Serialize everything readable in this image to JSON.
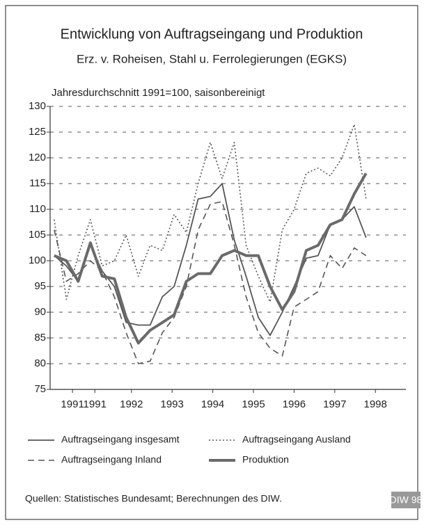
{
  "chart_data": {
    "type": "line",
    "title": "Entwicklung von Auftragseingang und Produktion",
    "subtitle": "Erz. v. Roheisen, Stahl u. Ferrolegierungen (EGKS)",
    "y_label": "Jahresdurchschnitt 1991=100, saisonbereinigt",
    "source": "Quellen: Statistisches Bundesamt; Berechnungen des DIW.",
    "badge": "DIW 98",
    "xlim": [
      1990.5,
      1999.25
    ],
    "xticks": [
      {
        "value": 1991.05,
        "label": "1991"
      },
      {
        "value": 1991.6,
        "label": "1991"
      },
      {
        "value": 1992.5,
        "label": "1992"
      },
      {
        "value": 1993.5,
        "label": "1993"
      },
      {
        "value": 1994.5,
        "label": "1994"
      },
      {
        "value": 1995.5,
        "label": "1995"
      },
      {
        "value": 1996.5,
        "label": "1996"
      },
      {
        "value": 1997.5,
        "label": "1997"
      },
      {
        "value": 1998.5,
        "label": "1998"
      }
    ],
    "ylim": [
      75,
      130
    ],
    "yticks": [
      75,
      80,
      85,
      90,
      95,
      100,
      105,
      110,
      115,
      120,
      125,
      130
    ],
    "grid": true,
    "x": [
      1990.6,
      1990.9,
      1991.19,
      1991.49,
      1991.78,
      1992.08,
      1992.37,
      1992.67,
      1992.96,
      1993.26,
      1993.55,
      1993.85,
      1994.14,
      1994.44,
      1994.73,
      1995.03,
      1995.32,
      1995.62,
      1995.91,
      1996.21,
      1996.5,
      1996.8,
      1997.09,
      1997.39,
      1997.68,
      1997.98,
      1998.27
    ],
    "series": [
      {
        "name": "Auftragseingang insgesamt",
        "color": "#555555",
        "dash": "solid",
        "width": 1.8,
        "values": [
          101,
          99,
          96,
          103,
          98,
          95,
          88,
          87.5,
          87.5,
          93,
          95,
          103,
          112,
          112.5,
          115,
          104,
          97,
          89,
          85.5,
          90,
          95,
          100.5,
          101,
          107,
          108,
          110.5,
          104.5
        ]
      },
      {
        "name": "Auftragseingang Ausland",
        "color": "#555555",
        "dash": "dotted",
        "width": 1.6,
        "values": [
          108,
          92.5,
          101,
          108,
          99,
          100,
          105,
          97,
          103,
          102,
          109,
          105.5,
          115,
          123,
          116,
          123,
          103,
          97,
          92,
          106,
          110,
          117,
          118,
          116.5,
          120,
          126.5,
          112
        ]
      },
      {
        "name": "Auftragseingang Inland",
        "color": "#555555",
        "dash": "dashed",
        "width": 1.6,
        "values": [
          106,
          96,
          97.5,
          100,
          98,
          93,
          86,
          80,
          80.5,
          86,
          89,
          95,
          106,
          111,
          111.5,
          103,
          93,
          86,
          83,
          81.5,
          91,
          92.5,
          94,
          101,
          98.5,
          102.5,
          101
        ]
      },
      {
        "name": "Produktion",
        "color": "#6a6a6a",
        "dash": "solid",
        "width": 4,
        "values": [
          101,
          100,
          96,
          103.5,
          97,
          96.5,
          89,
          84,
          86.5,
          88,
          89.5,
          96,
          97.5,
          97.5,
          101,
          102,
          101,
          101,
          95,
          90.5,
          94,
          102,
          103,
          107,
          108,
          113,
          117
        ]
      }
    ]
  }
}
